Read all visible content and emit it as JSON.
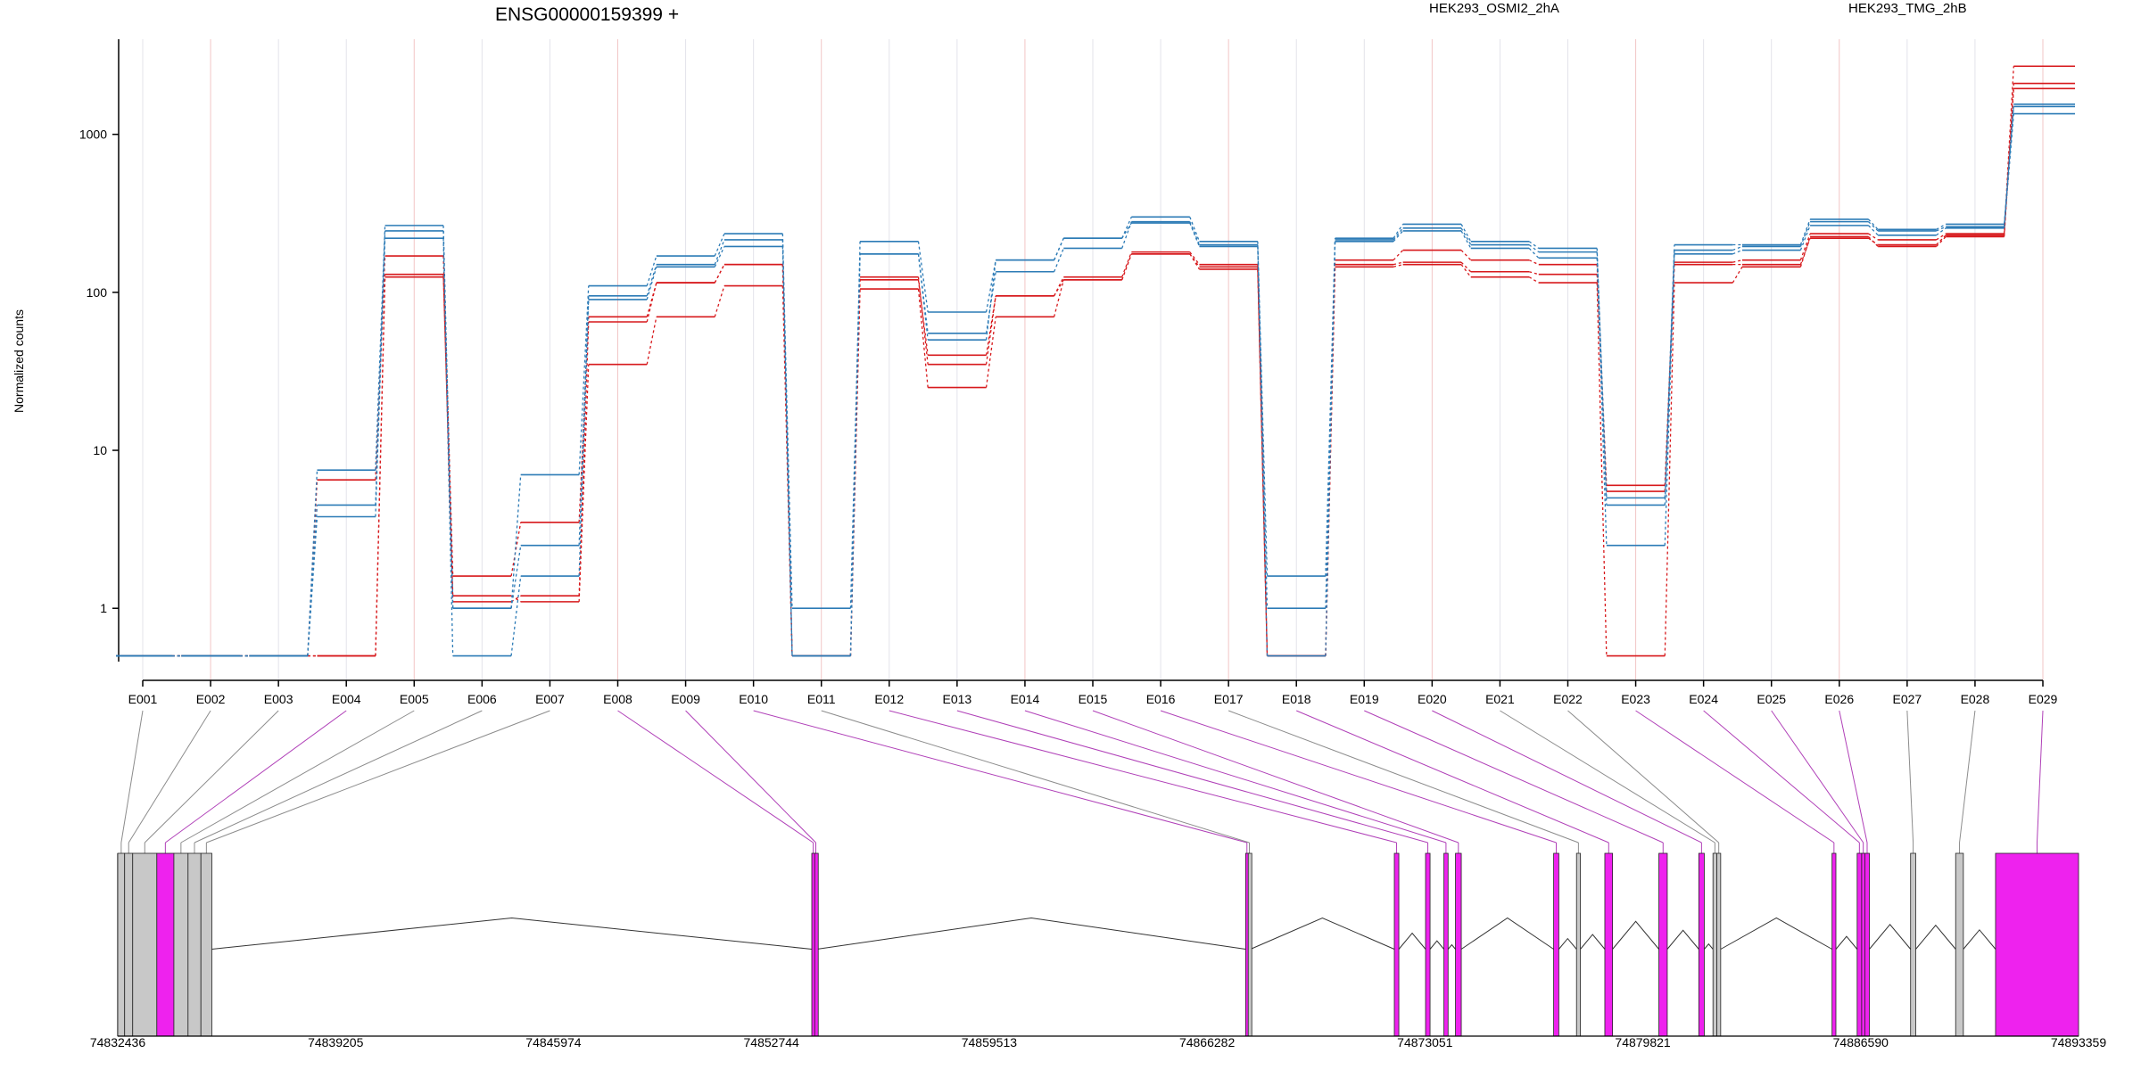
{
  "title": "ENSG00000159399 +",
  "colors": {
    "condition_a": "#d7191c",
    "condition_b": "#2c7bb6",
    "exon_highlight": "#ee22ee",
    "exon_plain": "#c8c8c8"
  },
  "legend": [
    {
      "label": "HEK293_OSMI2_2hA",
      "color": "#d7191c"
    },
    {
      "label": "HEK293_TMG_2hB",
      "color": "#2c7bb6"
    }
  ],
  "chart_data": {
    "type": "line",
    "ylabel": "Normalized counts",
    "yscale": "log",
    "ylim": [
      0.35,
      4000
    ],
    "yticks": [
      {
        "value": 1,
        "label": "1"
      },
      {
        "value": 10,
        "label": "10"
      },
      {
        "value": 100,
        "label": "100"
      },
      {
        "value": 1000,
        "label": "1000"
      }
    ],
    "categories": [
      "E001",
      "E002",
      "E003",
      "E004",
      "E005",
      "E006",
      "E007",
      "E008",
      "E009",
      "E010",
      "E011",
      "E012",
      "E013",
      "E014",
      "E015",
      "E016",
      "E017",
      "E018",
      "E019",
      "E020",
      "E021",
      "E022",
      "E023",
      "E024",
      "E025",
      "E026",
      "E027",
      "E028",
      "E029"
    ],
    "series": [
      {
        "group": "a",
        "values": [
          0.5,
          0.5,
          0.5,
          6.5,
          170,
          1.6,
          3.5,
          70,
          115,
          150,
          0.5,
          120,
          40,
          95,
          125,
          180,
          150,
          0.5,
          160,
          185,
          160,
          150,
          6,
          155,
          160,
          235,
          215,
          235,
          2700
        ]
      },
      {
        "group": "a",
        "values": [
          0.5,
          0.5,
          0.5,
          0.5,
          130,
          1.1,
          1.2,
          65,
          115,
          150,
          0.5,
          125,
          35,
          95,
          120,
          175,
          145,
          0.5,
          150,
          155,
          135,
          130,
          5.5,
          150,
          150,
          220,
          200,
          230,
          2100
        ]
      },
      {
        "group": "a",
        "values": [
          0.5,
          0.5,
          0.5,
          0.5,
          125,
          1.2,
          1.1,
          35,
          70,
          110,
          0.5,
          105,
          25,
          70,
          120,
          175,
          140,
          0.5,
          145,
          150,
          125,
          115,
          0.5,
          115,
          145,
          225,
          195,
          225,
          1950
        ]
      },
      {
        "group": "b",
        "values": [
          0.5,
          0.5,
          0.5,
          7.5,
          265,
          1.0,
          7.0,
          110,
          170,
          235,
          0.5,
          210,
          75,
          160,
          220,
          300,
          210,
          1.6,
          220,
          270,
          210,
          190,
          5.0,
          200,
          200,
          290,
          250,
          270,
          1500
        ]
      },
      {
        "group": "b",
        "values": [
          0.5,
          0.5,
          0.5,
          4.5,
          245,
          1.0,
          2.5,
          95,
          150,
          215,
          1.0,
          175,
          55,
          135,
          190,
          280,
          200,
          1.0,
          215,
          255,
          200,
          180,
          4.5,
          185,
          195,
          280,
          245,
          260,
          1550
        ]
      },
      {
        "group": "b",
        "values": [
          0.5,
          0.5,
          0.5,
          3.8,
          220,
          0.5,
          1.6,
          90,
          145,
          195,
          0.5,
          175,
          50,
          160,
          220,
          275,
          195,
          0.5,
          210,
          245,
          190,
          165,
          2.5,
          175,
          185,
          265,
          230,
          255,
          1350
        ]
      }
    ]
  },
  "gene_model": {
    "coordinates": [
      "74832436",
      "74839205",
      "74845974",
      "74852744",
      "74859513",
      "74866282",
      "74873051",
      "74879821",
      "74886590",
      "74893359"
    ],
    "exons": [
      {
        "label": "E001",
        "start": 74832436,
        "end": 74832650,
        "highlight": false
      },
      {
        "label": "E002",
        "start": 74832650,
        "end": 74832900,
        "highlight": false
      },
      {
        "label": "E003",
        "start": 74832900,
        "end": 74833650,
        "highlight": false
      },
      {
        "label": "E004",
        "start": 74833650,
        "end": 74834180,
        "highlight": true
      },
      {
        "label": "E005",
        "start": 74834180,
        "end": 74834620,
        "highlight": false
      },
      {
        "label": "E006",
        "start": 74834620,
        "end": 74835020,
        "highlight": false
      },
      {
        "label": "E007",
        "start": 74835020,
        "end": 74835360,
        "highlight": false
      },
      {
        "label": "E008",
        "start": 74854000,
        "end": 74854090,
        "highlight": true
      },
      {
        "label": "E009",
        "start": 74854090,
        "end": 74854160,
        "highlight": true
      },
      {
        "label": "E010",
        "start": 74867480,
        "end": 74867560,
        "highlight": true
      },
      {
        "label": "E011",
        "start": 74867560,
        "end": 74867630,
        "highlight": false
      },
      {
        "label": "E012",
        "start": 74872100,
        "end": 74872240,
        "highlight": true
      },
      {
        "label": "E013",
        "start": 74873070,
        "end": 74873210,
        "highlight": true
      },
      {
        "label": "E014",
        "start": 74873640,
        "end": 74873770,
        "highlight": true
      },
      {
        "label": "E015",
        "start": 74874000,
        "end": 74874180,
        "highlight": true
      },
      {
        "label": "E016",
        "start": 74877050,
        "end": 74877210,
        "highlight": true
      },
      {
        "label": "E017",
        "start": 74877760,
        "end": 74877880,
        "highlight": false
      },
      {
        "label": "E018",
        "start": 74878640,
        "end": 74878880,
        "highlight": true
      },
      {
        "label": "E019",
        "start": 74880320,
        "end": 74880580,
        "highlight": true
      },
      {
        "label": "E020",
        "start": 74881560,
        "end": 74881730,
        "highlight": true
      },
      {
        "label": "E021",
        "start": 74882000,
        "end": 74882120,
        "highlight": false
      },
      {
        "label": "E022",
        "start": 74882120,
        "end": 74882240,
        "highlight": false
      },
      {
        "label": "E023",
        "start": 74885700,
        "end": 74885820,
        "highlight": true
      },
      {
        "label": "E024",
        "start": 74886480,
        "end": 74886620,
        "highlight": true
      },
      {
        "label": "E025",
        "start": 74886620,
        "end": 74886720,
        "highlight": true
      },
      {
        "label": "E026",
        "start": 74886720,
        "end": 74886860,
        "highlight": true
      },
      {
        "label": "E027",
        "start": 74888140,
        "end": 74888300,
        "highlight": false
      },
      {
        "label": "E028",
        "start": 74889540,
        "end": 74889780,
        "highlight": false
      },
      {
        "label": "E029",
        "start": 74890780,
        "end": 74893359,
        "highlight": true
      }
    ]
  }
}
